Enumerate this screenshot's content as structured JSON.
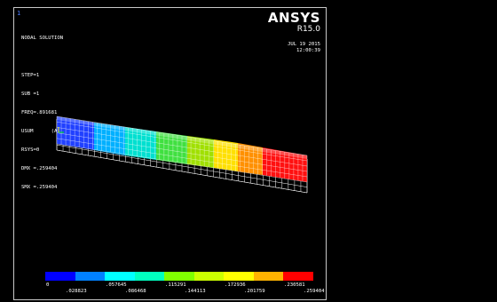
{
  "window": {
    "number": "1"
  },
  "brand": {
    "name": "ANSYS",
    "version": "R15.0"
  },
  "info": {
    "lines": [
      "NODAL SOLUTION",
      "",
      "STEP=1",
      "SUB =1",
      "FREQ=.891681",
      "USUM      (AVG)",
      "RSYS=0",
      "DMX =.259404",
      "SMX =.259404"
    ]
  },
  "datetime": {
    "date": "JUL 19 2015",
    "time": "12:00:39"
  },
  "legend": {
    "colors": [
      "#0000ff",
      "#0080ff",
      "#00ffff",
      "#00ffbf",
      "#80ff00",
      "#ccff00",
      "#ffff00",
      "#ffb300",
      "#ff0000"
    ],
    "top_labels": [
      "0",
      ".057645",
      ".115291",
      ".172936",
      ".230581"
    ],
    "bottom_labels": [
      ".028823",
      ".086468",
      ".144113",
      ".201759",
      ".259404"
    ]
  },
  "icons": [
    "deformed-beam-model"
  ]
}
